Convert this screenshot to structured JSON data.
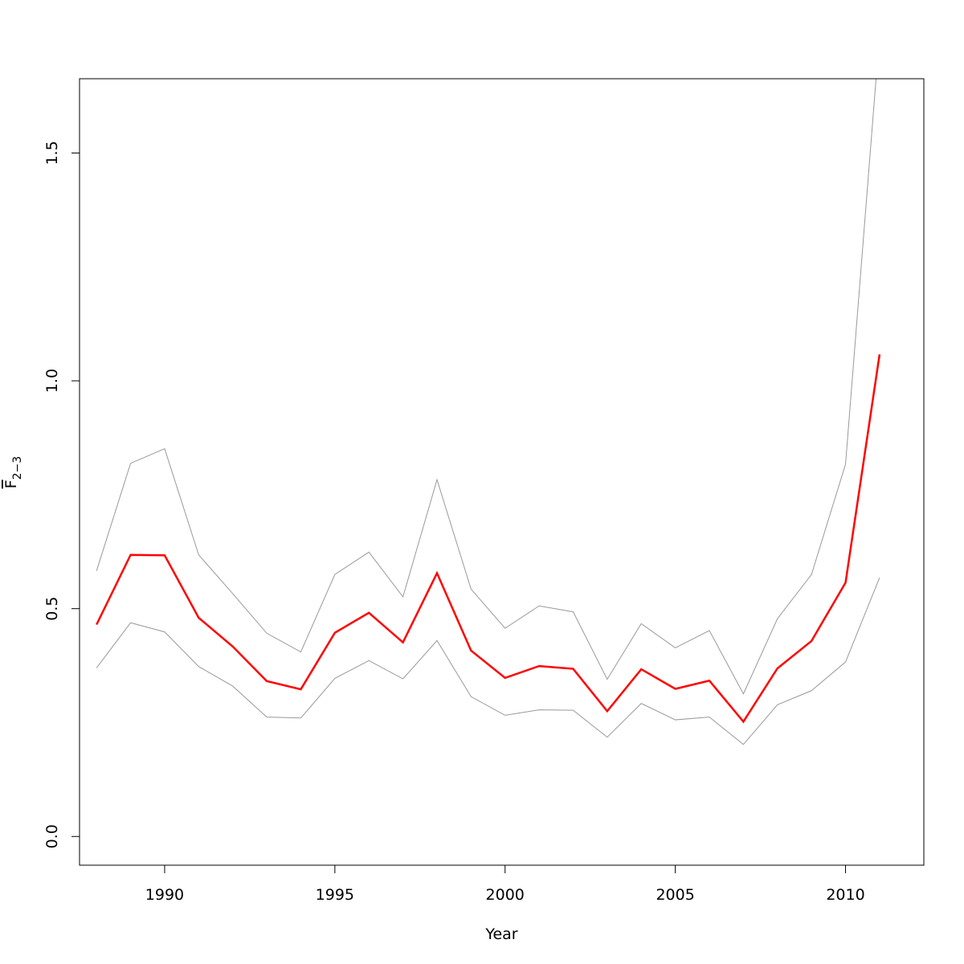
{
  "chart_data": {
    "type": "line",
    "title": "",
    "xlabel": "Year",
    "ylabel": {
      "main": "F",
      "subscript": "2−3",
      "overbar": true
    },
    "xlim": [
      1987.5,
      2012.3
    ],
    "ylim": [
      -0.063,
      1.663
    ],
    "x_ticks": [
      1990,
      1995,
      2000,
      2005,
      2010
    ],
    "x_tick_labels": [
      "1990",
      "1995",
      "2000",
      "2005",
      "2010"
    ],
    "y_ticks": [
      0.0,
      0.5,
      1.0,
      1.5
    ],
    "y_tick_labels": [
      "0.0",
      "0.5",
      "1.0",
      "1.5"
    ],
    "grid": false,
    "x": [
      1988,
      1989,
      1990,
      1991,
      1992,
      1993,
      1994,
      1995,
      1996,
      1997,
      1998,
      1999,
      2000,
      2001,
      2002,
      2003,
      2004,
      2005,
      2006,
      2007,
      2008,
      2009,
      2010,
      2011
    ],
    "series": [
      {
        "role": "estimate",
        "color": "#ff0000",
        "width": 2.5,
        "values": [
          0.465,
          0.618,
          0.617,
          0.48,
          0.417,
          0.341,
          0.323,
          0.447,
          0.491,
          0.426,
          0.578,
          0.408,
          0.348,
          0.374,
          0.368,
          0.275,
          0.367,
          0.324,
          0.342,
          0.252,
          0.369,
          0.429,
          0.557,
          1.058
        ]
      },
      {
        "role": "upper",
        "color": "#999999",
        "width": 1,
        "values": [
          0.583,
          0.819,
          0.851,
          0.618,
          0.533,
          0.446,
          0.405,
          0.575,
          0.624,
          0.526,
          0.783,
          0.543,
          0.457,
          0.506,
          0.493,
          0.345,
          0.467,
          0.414,
          0.452,
          0.313,
          0.478,
          0.575,
          0.817,
          1.76
        ]
      },
      {
        "role": "lower",
        "color": "#999999",
        "width": 1,
        "values": [
          0.37,
          0.469,
          0.449,
          0.373,
          0.33,
          0.262,
          0.26,
          0.347,
          0.386,
          0.346,
          0.43,
          0.307,
          0.266,
          0.278,
          0.277,
          0.218,
          0.292,
          0.256,
          0.262,
          0.202,
          0.289,
          0.32,
          0.383,
          0.568
        ]
      }
    ]
  }
}
